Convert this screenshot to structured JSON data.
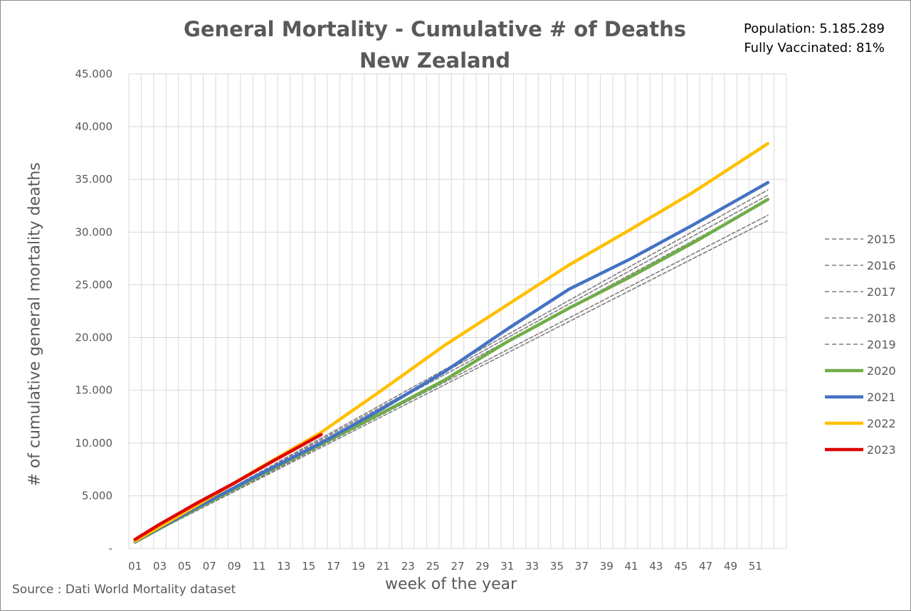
{
  "title_lines": [
    "General Mortality - Cumulative # of Deaths",
    "New Zealand"
  ],
  "info": {
    "population": "Population: 5.185.289",
    "vaccinated": "Fully Vaccinated: 81%"
  },
  "source": "Source : Dati World Mortality dataset",
  "chart_data": {
    "type": "line",
    "title": "General Mortality - Cumulative # of Deaths New Zealand",
    "xlabel": "week of the year",
    "ylabel": "# of cumulative general mortality deaths",
    "x_tick_labels": [
      "01",
      "03",
      "05",
      "07",
      "09",
      "11",
      "13",
      "15",
      "17",
      "19",
      "21",
      "23",
      "25",
      "27",
      "29",
      "31",
      "33",
      "35",
      "37",
      "39",
      "41",
      "43",
      "45",
      "47",
      "49",
      "51"
    ],
    "y_tick_labels": [
      "-",
      "5.000",
      "10.000",
      "15.000",
      "20.000",
      "25.000",
      "30.000",
      "35.000",
      "40.000",
      "45.000"
    ],
    "ylim": [
      0,
      45000
    ],
    "xlim": [
      1,
      53
    ],
    "grid": true,
    "legend_position": "right",
    "series": [
      {
        "name": "2015",
        "color": "#7f7f7f",
        "style": "dashed",
        "x": [
          1,
          52
        ],
        "y": [
          600,
          31100
        ]
      },
      {
        "name": "2016",
        "color": "#7f7f7f",
        "style": "dashed",
        "x": [
          1,
          52
        ],
        "y": [
          600,
          31600
        ]
      },
      {
        "name": "2017",
        "color": "#7f7f7f",
        "style": "dashed",
        "x": [
          1,
          52
        ],
        "y": [
          650,
          33000
        ]
      },
      {
        "name": "2018",
        "color": "#7f7f7f",
        "style": "dashed",
        "x": [
          1,
          52
        ],
        "y": [
          650,
          33500
        ]
      },
      {
        "name": "2019",
        "color": "#7f7f7f",
        "style": "dashed",
        "x": [
          1,
          52
        ],
        "y": [
          650,
          34000
        ]
      },
      {
        "name": "2020",
        "color": "#70ad47",
        "style": "solid",
        "x": [
          1,
          6,
          11,
          16,
          21,
          26,
          31,
          36,
          41,
          46,
          52
        ],
        "y": [
          600,
          3800,
          6900,
          9900,
          12900,
          16000,
          19600,
          22800,
          25800,
          29000,
          33100
        ]
      },
      {
        "name": "2021",
        "color": "#4472c4",
        "style": "solid",
        "x": [
          1,
          6,
          11,
          16,
          21,
          26,
          31,
          36,
          41,
          46,
          52
        ],
        "y": [
          650,
          3900,
          7000,
          10000,
          13300,
          16800,
          20800,
          24600,
          27500,
          30700,
          34700
        ]
      },
      {
        "name": "2022",
        "color": "#ffc000",
        "style": "solid",
        "x": [
          1,
          6,
          11,
          16,
          21,
          26,
          31,
          36,
          41,
          46,
          52
        ],
        "y": [
          700,
          4100,
          7600,
          11000,
          15100,
          19300,
          23100,
          26900,
          30300,
          33800,
          38400
        ]
      },
      {
        "name": "2023",
        "color": "#e00000",
        "style": "solid",
        "x": [
          1,
          3,
          6,
          9,
          12,
          16
        ],
        "y": [
          850,
          2300,
          4300,
          6200,
          8200,
          10800
        ]
      }
    ]
  }
}
